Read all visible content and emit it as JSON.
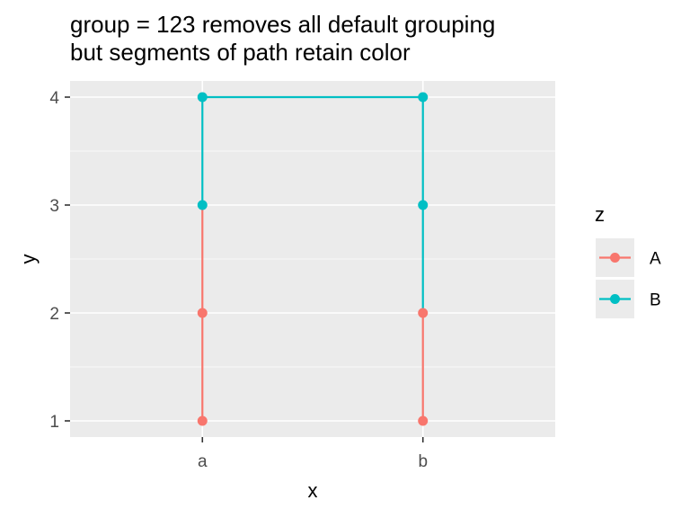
{
  "chart_data": {
    "type": "line",
    "title_lines": [
      "group = 123 removes all default grouping",
      "but segments of path retain color"
    ],
    "xlabel": "x",
    "ylabel": "y",
    "x_categories": [
      "a",
      "b"
    ],
    "y_ticks": [
      1,
      2,
      3,
      4
    ],
    "ylim": [
      0.85,
      4.15
    ],
    "grid": true,
    "legend": {
      "title": "z",
      "position": "right",
      "entries": [
        {
          "label": "A",
          "color": "#F8766D"
        },
        {
          "label": "B",
          "color": "#00BFC4"
        }
      ]
    },
    "path": [
      {
        "x": "a",
        "y": 1,
        "z": "A"
      },
      {
        "x": "a",
        "y": 2,
        "z": "A"
      },
      {
        "x": "a",
        "y": 3,
        "z": "B"
      },
      {
        "x": "a",
        "y": 4,
        "z": "B"
      },
      {
        "x": "b",
        "y": 4,
        "z": "B"
      },
      {
        "x": "b",
        "y": 3,
        "z": "B"
      },
      {
        "x": "b",
        "y": 2,
        "z": "A"
      },
      {
        "x": "b",
        "y": 1,
        "z": "A"
      }
    ]
  }
}
